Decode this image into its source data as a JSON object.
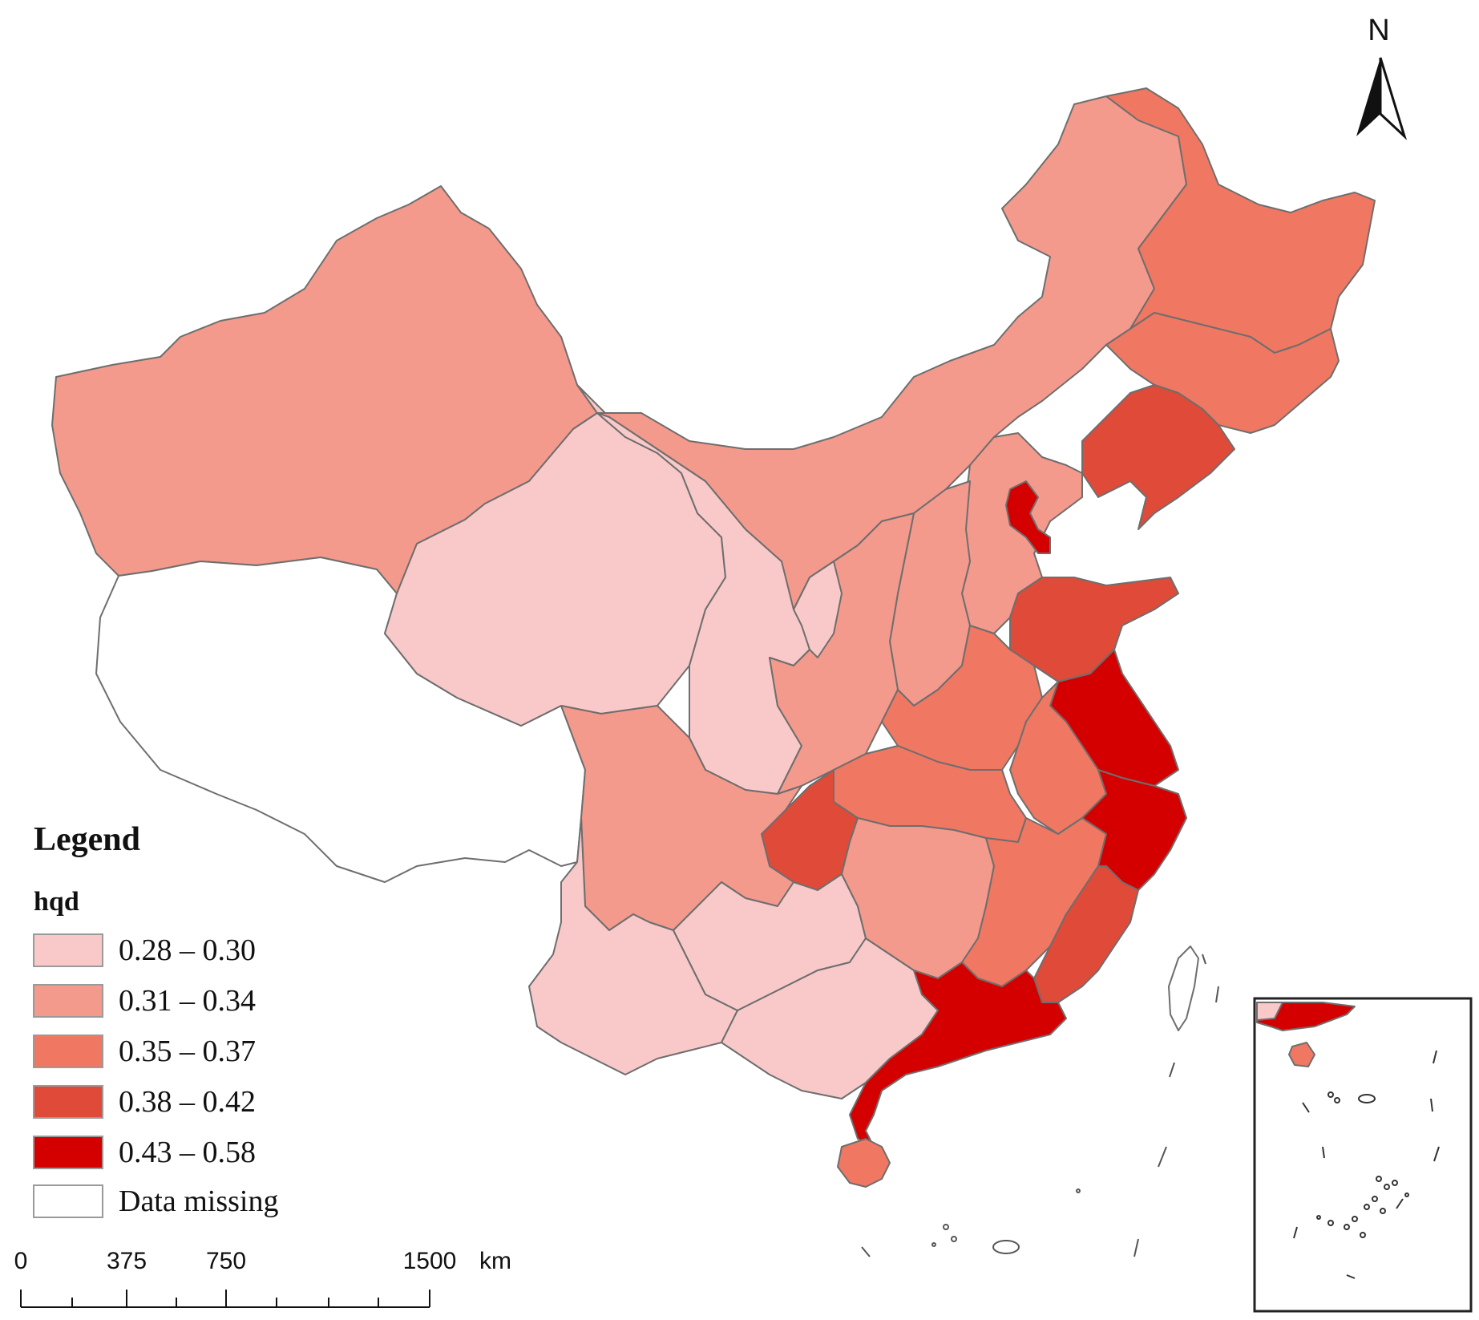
{
  "legend": {
    "title": "Legend",
    "field": "hqd",
    "classes": [
      {
        "label": "0.28 – 0.30",
        "color": "#f9c9c9"
      },
      {
        "label": "0.31 – 0.34",
        "color": "#f49a8c"
      },
      {
        "label": "0.35 – 0.37",
        "color": "#f07862"
      },
      {
        "label": "0.38 – 0.42",
        "color": "#e04a38"
      },
      {
        "label": "0.43 – 0.58",
        "color": "#d40000"
      }
    ],
    "missing": {
      "label": "Data missing",
      "color": "#ffffff"
    }
  },
  "north_arrow": {
    "label": "N"
  },
  "scale_bar": {
    "ticks": [
      "0",
      "375",
      "750",
      "1500"
    ],
    "unit": "km"
  },
  "regions": [
    {
      "name": "Xinjiang",
      "class": 1
    },
    {
      "name": "Tibet",
      "class": null
    },
    {
      "name": "Qinghai",
      "class": 0
    },
    {
      "name": "Gansu",
      "class": 0
    },
    {
      "name": "Inner Mongolia",
      "class": 1
    },
    {
      "name": "Heilongjiang",
      "class": 2
    },
    {
      "name": "Jilin",
      "class": 2
    },
    {
      "name": "Liaoning",
      "class": 3
    },
    {
      "name": "Beijing",
      "class": 4
    },
    {
      "name": "Hebei",
      "class": 1
    },
    {
      "name": "Shanxi",
      "class": 1
    },
    {
      "name": "Shaanxi",
      "class": 1
    },
    {
      "name": "Ningxia",
      "class": 0
    },
    {
      "name": "Shandong",
      "class": 3
    },
    {
      "name": "Henan",
      "class": 2
    },
    {
      "name": "Jiangsu",
      "class": 4
    },
    {
      "name": "Anhui",
      "class": 2
    },
    {
      "name": "Hubei",
      "class": 2
    },
    {
      "name": "Chongqing",
      "class": 3
    },
    {
      "name": "Sichuan",
      "class": 1
    },
    {
      "name": "Yunnan",
      "class": 0
    },
    {
      "name": "Guizhou",
      "class": 0
    },
    {
      "name": "Guangxi",
      "class": 0
    },
    {
      "name": "Hunan",
      "class": 1
    },
    {
      "name": "Jiangxi",
      "class": 2
    },
    {
      "name": "Zhejiang",
      "class": 4
    },
    {
      "name": "Fujian",
      "class": 3
    },
    {
      "name": "Guangdong",
      "class": 4
    },
    {
      "name": "Hainan",
      "class": 2
    },
    {
      "name": "Taiwan",
      "class": null
    }
  ]
}
